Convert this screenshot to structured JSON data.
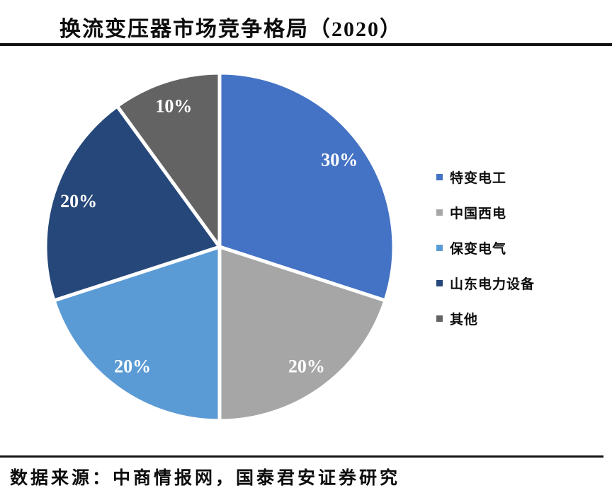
{
  "title": "换流变压器市场竞争格局（2020）",
  "source_note": "数据来源：中商情报网，国泰君安证券研究",
  "rule_color": "#141414",
  "chart_data": {
    "type": "pie",
    "title": "换流变压器市场竞争格局（2020）",
    "categories": [
      "特变电工",
      "中国西电",
      "保变电气",
      "山东电力设备",
      "其他"
    ],
    "values": [
      30,
      20,
      20,
      20,
      10
    ],
    "unit": "%",
    "data_labels": [
      "30%",
      "20%",
      "20%",
      "20%",
      "10%"
    ],
    "colors": [
      "#4472C4",
      "#A6A6A6",
      "#5B9BD5",
      "#264779",
      "#636363"
    ],
    "data_label_color": "#FFFFFF",
    "start_angle_deg": 0,
    "direction": "clockwise",
    "legend_position": "right",
    "slice_border_color": "#FFFFFF"
  }
}
